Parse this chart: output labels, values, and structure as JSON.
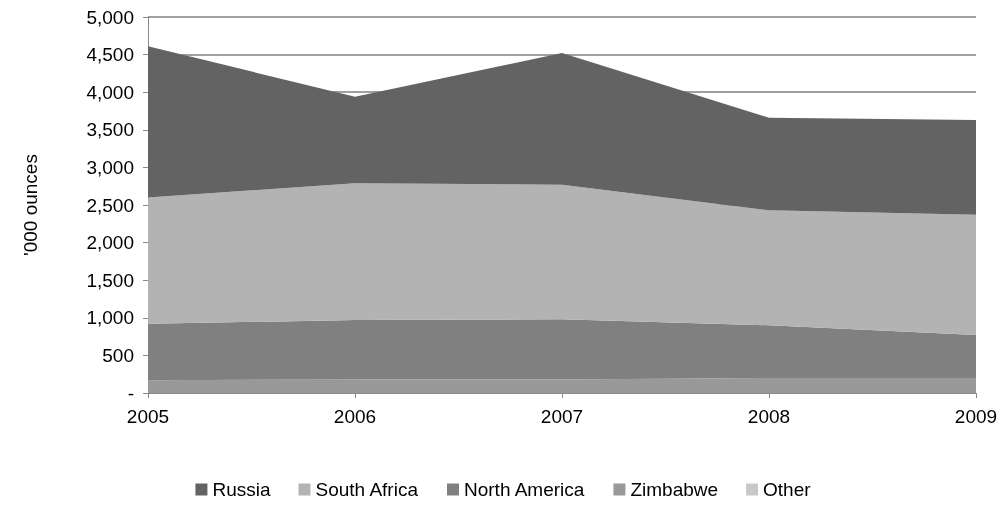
{
  "chart_data": {
    "type": "area",
    "ylabel": "'000 ounces",
    "categories": [
      "2005",
      "2006",
      "2007",
      "2008",
      "2009"
    ],
    "series": [
      {
        "name": "Other",
        "color": "#c8c8c8",
        "values": [
          null,
          null,
          null,
          null,
          null
        ]
      },
      {
        "name": "Zimbabwe",
        "color": "#999999",
        "values": [
          170,
          180,
          180,
          200,
          200
        ]
      },
      {
        "name": "North America",
        "color": "#808080",
        "values": [
          750,
          790,
          800,
          700,
          570
        ]
      },
      {
        "name": "South Africa",
        "color": "#b3b3b3",
        "values": [
          1680,
          1820,
          1790,
          1530,
          1600
        ]
      },
      {
        "name": "Russia",
        "color": "#636363",
        "values": [
          2010,
          1150,
          1750,
          1230,
          1260
        ]
      }
    ],
    "stacked": true,
    "ylim": [
      0,
      5000
    ],
    "yticks": [
      {
        "value": 0,
        "label": "-"
      },
      {
        "value": 500,
        "label": "500"
      },
      {
        "value": 1000,
        "label": "1,000"
      },
      {
        "value": 1500,
        "label": "1,500"
      },
      {
        "value": 2000,
        "label": "2,000"
      },
      {
        "value": 2500,
        "label": "2,500"
      },
      {
        "value": 3000,
        "label": "3,000"
      },
      {
        "value": 3500,
        "label": "3,500"
      },
      {
        "value": 4000,
        "label": "4,000"
      },
      {
        "value": 4500,
        "label": "4,500"
      },
      {
        "value": 5000,
        "label": "5,000"
      }
    ],
    "grid": "y",
    "legend": "bottom"
  }
}
